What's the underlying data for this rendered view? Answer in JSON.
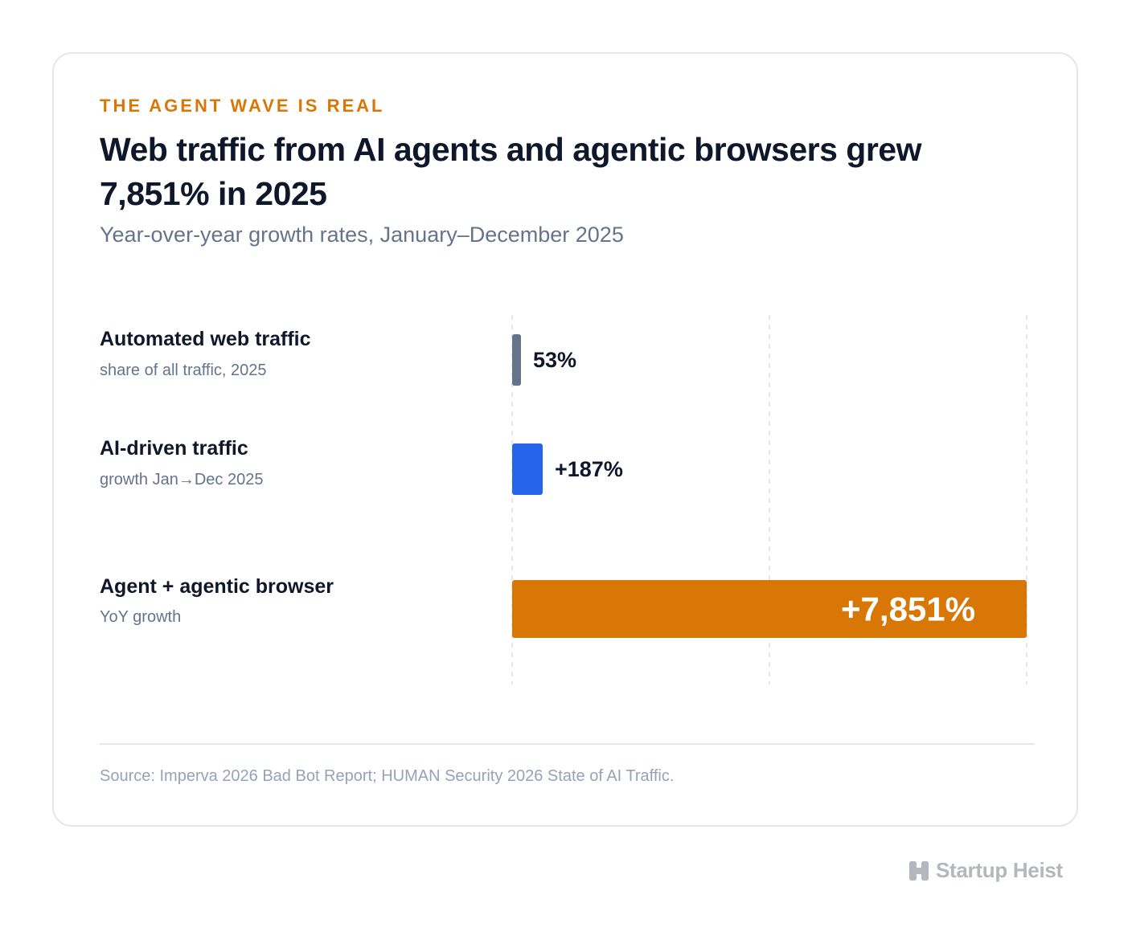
{
  "eyebrow": "THE AGENT WAVE IS REAL",
  "title": "Web traffic from AI agents and agentic browsers grew 7,851% in 2025",
  "subtitle": "Year-over-year growth rates, January–December 2025",
  "source": "Source: Imperva 2026 Bad Bot Report; HUMAN Security 2026 State of AI Traffic.",
  "brand": {
    "name": "Startup Heist",
    "icon": "h-logo-icon"
  },
  "colors": {
    "accent": "#d97706",
    "slate": "#64748b",
    "blue": "#2563eb"
  },
  "chart_data": {
    "type": "bar",
    "orientation": "horizontal",
    "grid": true,
    "categories": [
      "Automated web traffic",
      "AI-driven traffic",
      "Agent + agentic browser"
    ],
    "sublabels": [
      "share of all traffic, 2025",
      "growth Jan→Dec 2025",
      "YoY growth"
    ],
    "values": [
      53,
      187,
      7851
    ],
    "value_labels": [
      "53%",
      "+187%",
      "+7,851%"
    ],
    "bar_colors": [
      "#64748b",
      "#2563eb",
      "#d97706"
    ],
    "xlim": [
      0,
      7851
    ]
  }
}
